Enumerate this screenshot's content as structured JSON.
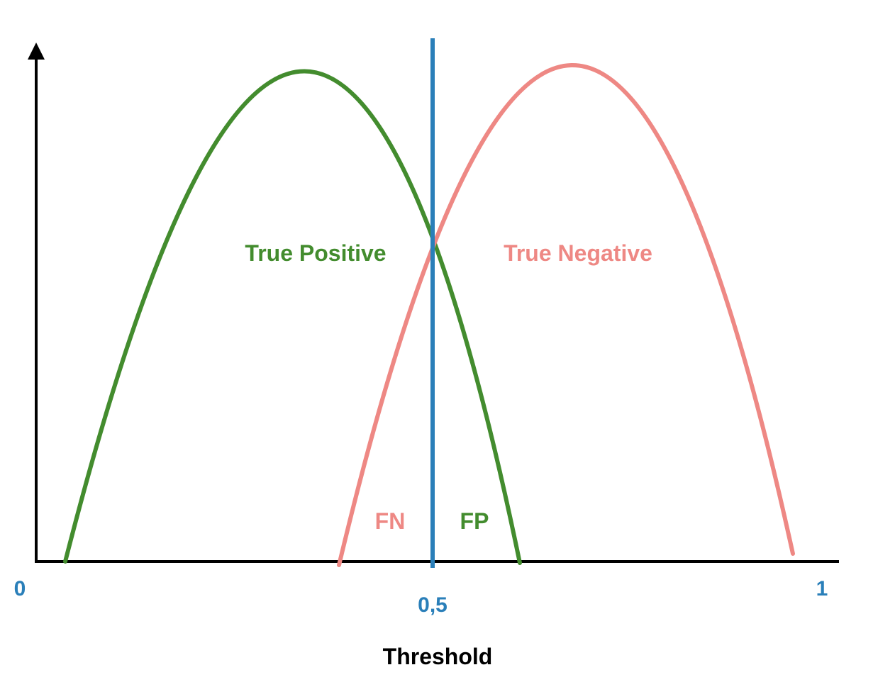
{
  "axis": {
    "xlabel": "Threshold",
    "tick_labels": [
      "0",
      "0,5",
      "1"
    ]
  },
  "labels": {
    "true_positive": "True Positive",
    "true_negative": "True Negative",
    "false_negative": "FN",
    "false_positive": "FP"
  },
  "colors": {
    "positive_curve": "#438c2e",
    "negative_curve": "#ee8884",
    "threshold_line": "#2a7fb9",
    "axis": "#000000",
    "tick_label": "#2a7fb9",
    "xlabel": "#000000"
  }
}
